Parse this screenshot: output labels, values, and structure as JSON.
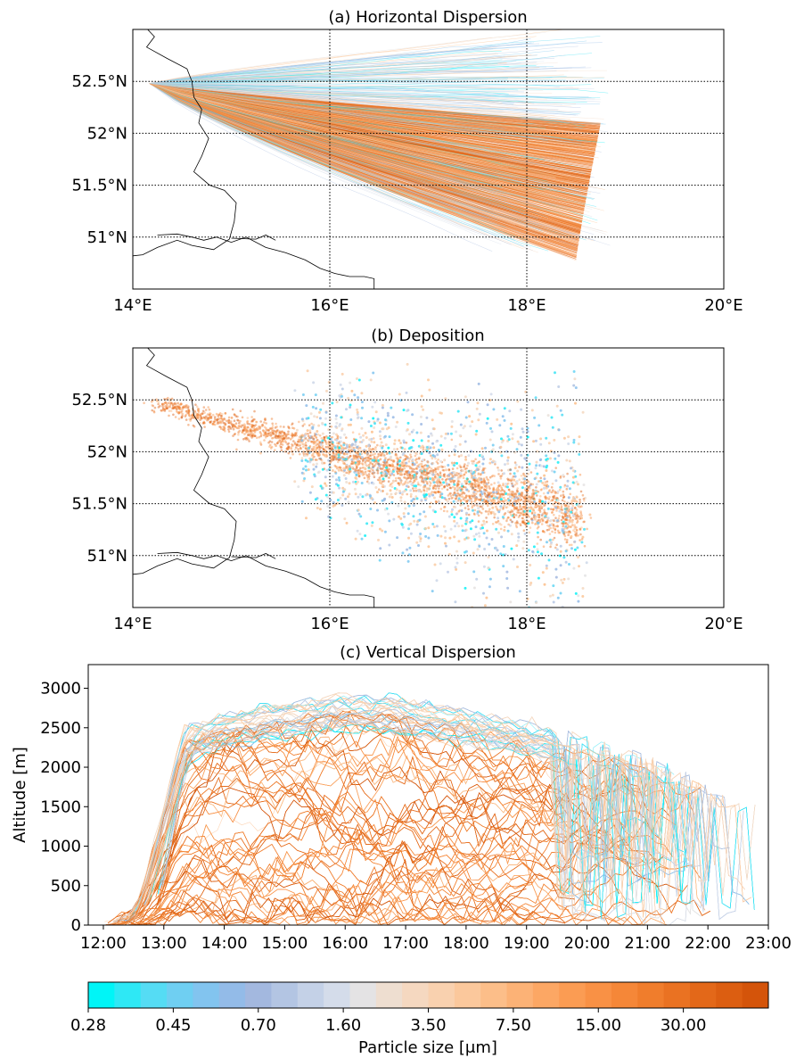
{
  "figure": {
    "panels": {
      "a": {
        "title": "(a) Horizontal Dispersion"
      },
      "b": {
        "title": "(b) Deposition"
      },
      "c": {
        "title": "(c) Vertical Dispersion",
        "ylabel": "Altitude [m]"
      }
    },
    "colorbar": {
      "label": "Particle size [μm]",
      "ticks": [
        "0.28",
        "0.45",
        "0.70",
        "1.60",
        "3.50",
        "7.50",
        "15.00",
        "30.00"
      ],
      "colors": [
        "#00f5f7",
        "#2ee8f5",
        "#55dcf4",
        "#6fcff2",
        "#82c4ef",
        "#93bbe8",
        "#a3b8df",
        "#b3c5e3",
        "#c4d1e7",
        "#d4dcea",
        "#e4e3e4",
        "#eeded0",
        "#f5d8c0",
        "#f9d1af",
        "#fbc89c",
        "#fcbe89",
        "#fcb276",
        "#fca764",
        "#fb9c53",
        "#f99145",
        "#f58738",
        "#f07d2c",
        "#ea7222",
        "#e36819",
        "#dc5e11",
        "#d4540a"
      ],
      "min_color": "#00f5f7",
      "max_color": "#d4540a"
    }
  },
  "chart_data": [
    {
      "type": "line",
      "title": "(a) Horizontal Dispersion",
      "description_series": "particle trajectories colored by particle size",
      "source": {
        "lon": 14.17,
        "lat": 52.48
      },
      "xlim": [
        14,
        20
      ],
      "ylim": [
        50.5,
        53.0
      ],
      "xticks": [
        "14°E",
        "16°E",
        "18°E",
        "20°E"
      ],
      "yticks": [
        "51°N",
        "51.5°N",
        "52°N",
        "52.5°N"
      ],
      "xtick_values": [
        14,
        16,
        18,
        20
      ],
      "ytick_values": [
        51,
        51.5,
        52,
        52.5
      ],
      "plume_large_particles": {
        "end_lon": [
          18.5,
          18.75
        ],
        "end_lat": [
          50.78,
          52.1
        ]
      },
      "plume_small_particles": {
        "end_lon": [
          18.85,
          18.85
        ],
        "end_lat": [
          50.9,
          52.9
        ]
      },
      "grid": "dotted"
    },
    {
      "type": "scatter",
      "title": "(b) Deposition",
      "xlim": [
        14,
        20
      ],
      "ylim": [
        50.5,
        53.0
      ],
      "xticks": [
        "14°E",
        "16°E",
        "18°E",
        "20°E"
      ],
      "yticks": [
        "51°N",
        "51.5°N",
        "52°N",
        "52.5°N"
      ],
      "xtick_values": [
        14,
        16,
        18,
        20
      ],
      "ytick_values": [
        51,
        51.5,
        52,
        52.5
      ],
      "deposition_axis": {
        "start": [
          14.17,
          52.48
        ],
        "end": [
          18.55,
          51.35
        ]
      },
      "deposition_spread_lat": {
        "large_particles": 0.12,
        "small_particles": 0.45
      },
      "grid": "dotted"
    },
    {
      "type": "line",
      "title": "(c) Vertical Dispersion",
      "xlabel": "",
      "ylabel": "Altitude [m]",
      "xlim": [
        "11:45",
        "23:00"
      ],
      "ylim": [
        0,
        3300
      ],
      "xticks": [
        "12:00",
        "13:00",
        "14:00",
        "15:00",
        "16:00",
        "17:00",
        "18:00",
        "19:00",
        "20:00",
        "21:00",
        "22:00",
        "23:00"
      ],
      "yticks": [
        "0",
        "500",
        "1000",
        "1500",
        "2000",
        "2500",
        "3000"
      ],
      "ytick_values": [
        0,
        500,
        1000,
        1500,
        2000,
        2500,
        3000
      ],
      "envelope_top": [
        {
          "time": "12:00",
          "altitude": 0
        },
        {
          "time": "12:30",
          "altitude": 200
        },
        {
          "time": "13:00",
          "altitude": 1600
        },
        {
          "time": "13:20",
          "altitude": 2500
        },
        {
          "time": "14:00",
          "altitude": 2650
        },
        {
          "time": "15:00",
          "altitude": 2800
        },
        {
          "time": "16:00",
          "altitude": 2900
        },
        {
          "time": "17:00",
          "altitude": 2850
        },
        {
          "time": "18:00",
          "altitude": 2700
        },
        {
          "time": "19:00",
          "altitude": 2550
        },
        {
          "time": "20:00",
          "altitude": 2350
        },
        {
          "time": "21:00",
          "altitude": 2150
        },
        {
          "time": "22:00",
          "altitude": 1800
        },
        {
          "time": "23:00",
          "altitude": 1500
        }
      ],
      "grid": "off"
    }
  ]
}
